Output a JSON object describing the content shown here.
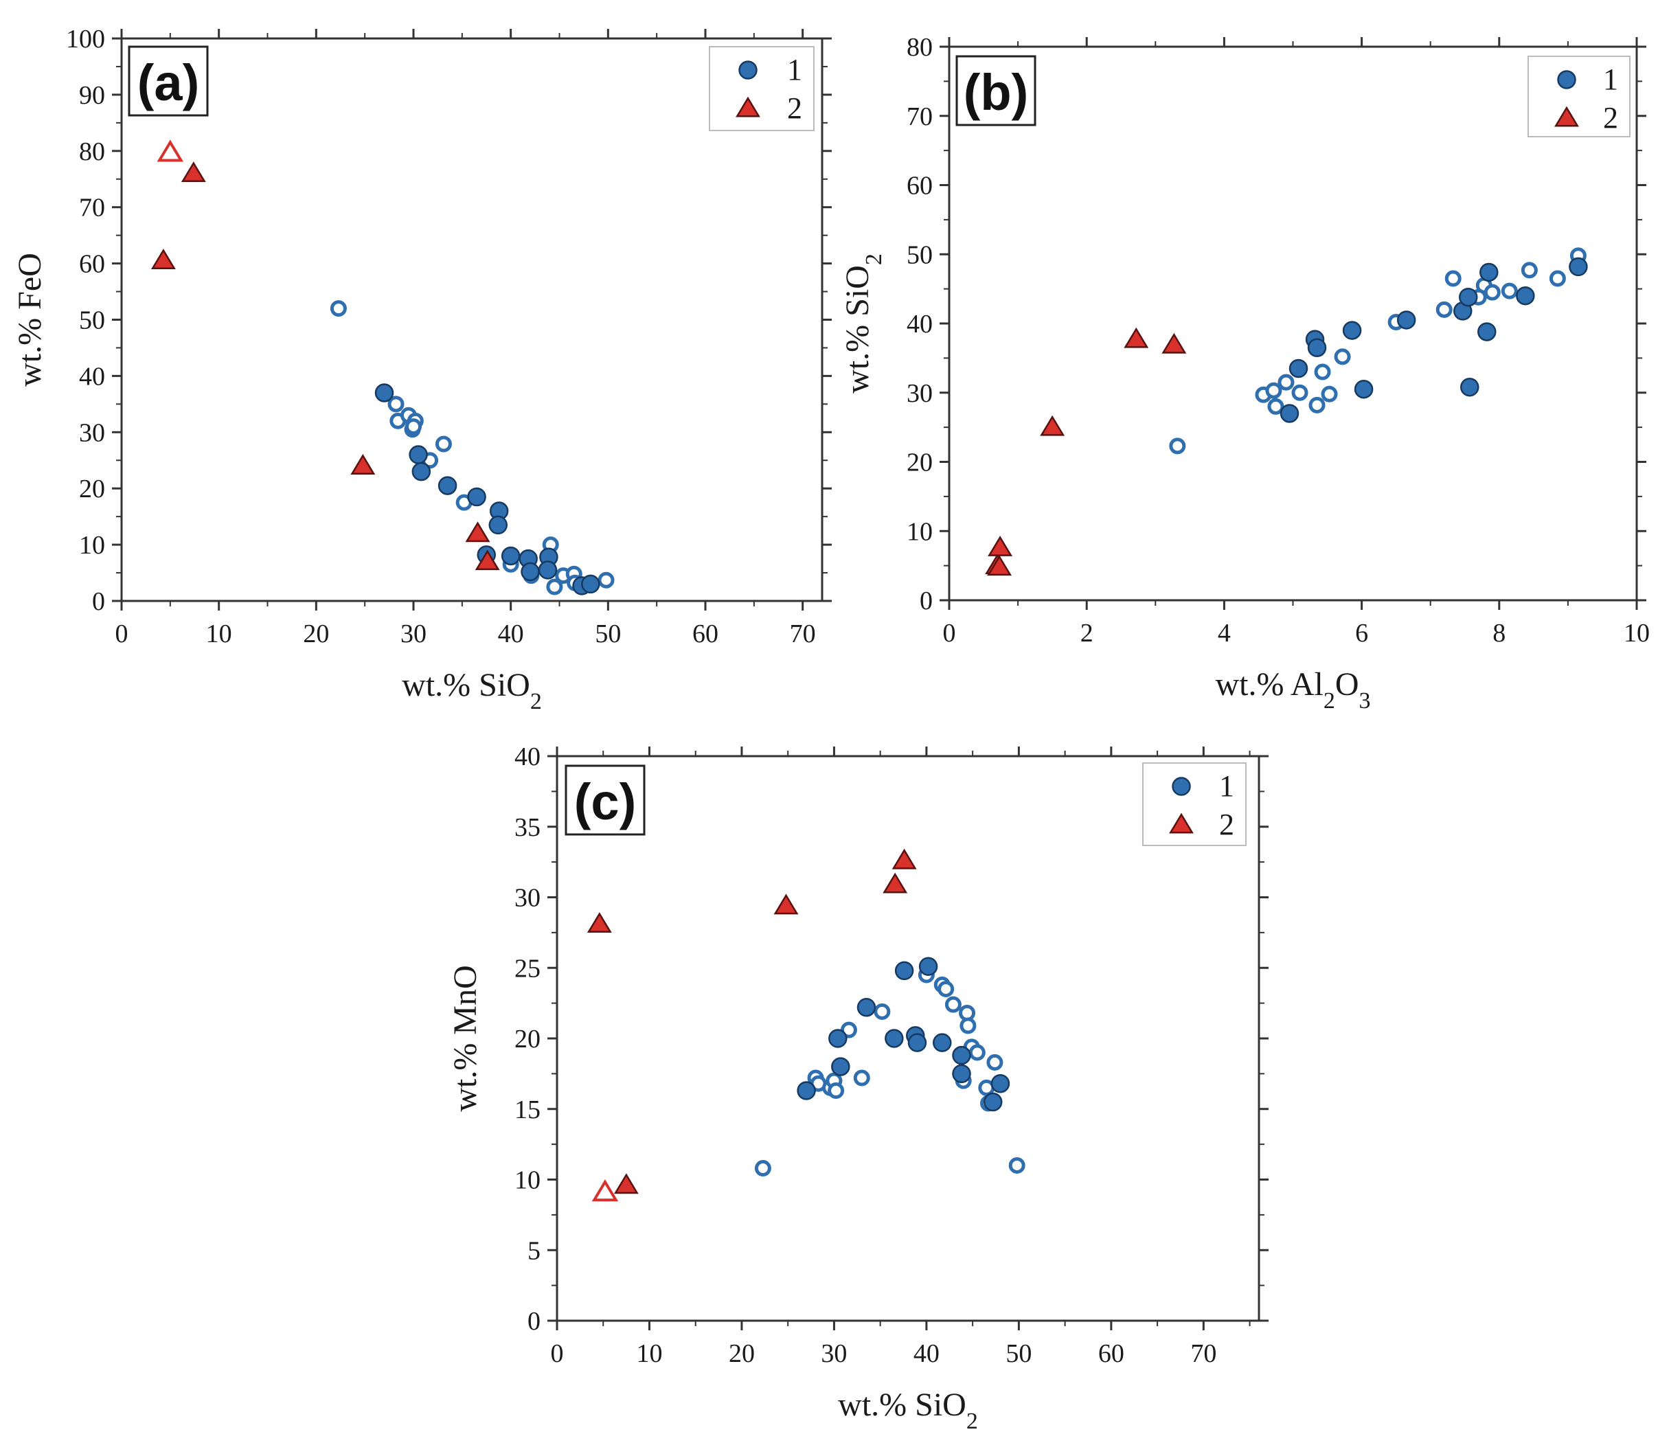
{
  "colors": {
    "series1": "#2f6faf",
    "series1_edge": "#163a62",
    "series2": "#d8312b",
    "series2_edge": "#5a1210"
  },
  "legend": [
    "1",
    "2"
  ],
  "chart_data": [
    {
      "type": "scatter",
      "panel": "(a)",
      "xlabel": "wt.% SiO2",
      "ylabel": "wt.% FeO",
      "xlim": [
        0,
        72
      ],
      "ylim": [
        0,
        100
      ],
      "xticks": [
        0,
        10,
        20,
        30,
        40,
        50,
        60,
        70
      ],
      "yticks": [
        0,
        10,
        20,
        30,
        40,
        50,
        60,
        70,
        80,
        90,
        100
      ],
      "legend_position": "top-right",
      "series": [
        {
          "name": "1",
          "marker": "circle",
          "filled_points": [
            [
              27,
              37
            ],
            [
              30.5,
              26
            ],
            [
              30.8,
              23
            ],
            [
              33.5,
              20.5
            ],
            [
              36.5,
              18.5
            ],
            [
              38.8,
              16
            ],
            [
              38.7,
              13.5
            ],
            [
              37.5,
              8.2
            ],
            [
              40,
              8
            ],
            [
              41.8,
              7.5
            ],
            [
              43.9,
              7.8
            ],
            [
              43.8,
              5.5
            ],
            [
              42,
              5.2
            ],
            [
              47.3,
              2.7
            ],
            [
              48.2,
              3
            ]
          ],
          "hollow_points": [
            [
              22.3,
              52
            ],
            [
              28.2,
              35
            ],
            [
              28.4,
              32
            ],
            [
              29.5,
              33
            ],
            [
              29.9,
              30.5
            ],
            [
              30.2,
              32
            ],
            [
              30,
              31
            ],
            [
              31.7,
              25
            ],
            [
              33.1,
              27.9
            ],
            [
              35.2,
              17.5
            ],
            [
              40,
              6.5
            ],
            [
              42.1,
              4.5
            ],
            [
              44.1,
              10
            ],
            [
              44.5,
              2.5
            ],
            [
              45.4,
              4.5
            ],
            [
              46.5,
              4.8
            ],
            [
              46.6,
              3.2
            ],
            [
              49.8,
              3.7
            ]
          ]
        },
        {
          "name": "2",
          "marker": "triangle",
          "filled_points": [
            [
              4.3,
              60.5
            ],
            [
              7.4,
              76
            ],
            [
              24.8,
              24
            ],
            [
              36.6,
              12
            ],
            [
              37.6,
              7
            ]
          ],
          "hollow_points": [
            [
              5,
              79.7
            ]
          ]
        }
      ]
    },
    {
      "type": "scatter",
      "panel": "(b)",
      "xlabel": "wt.% Al2O3",
      "ylabel": "wt.% SiO2",
      "xlim": [
        0,
        10
      ],
      "ylim": [
        0,
        80
      ],
      "xticks": [
        0,
        2,
        4,
        6,
        8,
        10
      ],
      "yticks": [
        0,
        10,
        20,
        30,
        40,
        50,
        60,
        70,
        80
      ],
      "legend_position": "top-right",
      "series": [
        {
          "name": "1",
          "marker": "circle",
          "filled_points": [
            [
              4.95,
              27
            ],
            [
              5.08,
              33.5
            ],
            [
              5.32,
              37.7
            ],
            [
              5.35,
              36.5
            ],
            [
              5.86,
              39
            ],
            [
              6.03,
              30.5
            ],
            [
              6.65,
              40.5
            ],
            [
              7.47,
              41.8
            ],
            [
              7.55,
              43.8
            ],
            [
              7.57,
              30.8
            ],
            [
              7.82,
              38.8
            ],
            [
              7.85,
              47.4
            ],
            [
              8.38,
              44
            ],
            [
              9.15,
              48.2
            ]
          ],
          "hollow_points": [
            [
              3.32,
              22.3
            ],
            [
              4.57,
              29.7
            ],
            [
              4.72,
              30.3
            ],
            [
              4.75,
              28
            ],
            [
              4.9,
              31.5
            ],
            [
              5.1,
              30
            ],
            [
              5.35,
              28.2
            ],
            [
              5.43,
              33
            ],
            [
              5.53,
              29.8
            ],
            [
              5.72,
              35.2
            ],
            [
              6.5,
              40.2
            ],
            [
              7.2,
              42
            ],
            [
              7.33,
              46.5
            ],
            [
              7.7,
              43.8
            ],
            [
              7.78,
              45.5
            ],
            [
              7.9,
              44.5
            ],
            [
              8.15,
              44.7
            ],
            [
              8.44,
              47.7
            ],
            [
              8.85,
              46.5
            ],
            [
              9.15,
              49.8
            ]
          ]
        },
        {
          "name": "2",
          "marker": "triangle",
          "filled_points": [
            [
              0.7,
              5
            ],
            [
              0.73,
              4.8
            ],
            [
              0.74,
              7.6
            ],
            [
              1.5,
              25
            ],
            [
              2.72,
              37.7
            ],
            [
              3.27,
              36.9
            ]
          ],
          "hollow_points": []
        }
      ]
    },
    {
      "type": "scatter",
      "panel": "(c)",
      "xlabel": "wt.% SiO2",
      "ylabel": "wt.% MnO",
      "xlim": [
        0,
        76
      ],
      "ylim": [
        0,
        40
      ],
      "xticks": [
        0,
        10,
        20,
        30,
        40,
        50,
        60,
        70
      ],
      "yticks": [
        0,
        5,
        10,
        15,
        20,
        25,
        30,
        35,
        40
      ],
      "legend_position": "top-right",
      "series": [
        {
          "name": "1",
          "marker": "circle",
          "filled_points": [
            [
              27,
              16.3
            ],
            [
              30.4,
              20
            ],
            [
              30.7,
              18
            ],
            [
              33.5,
              22.2
            ],
            [
              36.5,
              20
            ],
            [
              37.6,
              24.8
            ],
            [
              38.8,
              20.2
            ],
            [
              39,
              19.7
            ],
            [
              40.2,
              25.1
            ],
            [
              41.7,
              19.7
            ],
            [
              43.8,
              18.8
            ],
            [
              43.8,
              17.5
            ],
            [
              47.2,
              15.5
            ],
            [
              48,
              16.8
            ]
          ],
          "hollow_points": [
            [
              22.3,
              10.8
            ],
            [
              28,
              17.2
            ],
            [
              28.3,
              16.8
            ],
            [
              29.6,
              16.5
            ],
            [
              30,
              17
            ],
            [
              30.2,
              16.3
            ],
            [
              31.6,
              20.6
            ],
            [
              33,
              17.2
            ],
            [
              35.2,
              21.9
            ],
            [
              40,
              24.5
            ],
            [
              41.7,
              23.8
            ],
            [
              42.1,
              23.5
            ],
            [
              42.9,
              22.4
            ],
            [
              44,
              17
            ],
            [
              44.4,
              21.8
            ],
            [
              44.5,
              20.9
            ],
            [
              44.9,
              19.4
            ],
            [
              45.5,
              19
            ],
            [
              46.5,
              16.5
            ],
            [
              46.7,
              15.4
            ],
            [
              47.4,
              18.3
            ],
            [
              49.8,
              11
            ]
          ]
        },
        {
          "name": "2",
          "marker": "triangle",
          "filled_points": [
            [
              4.6,
              28.1
            ],
            [
              7.5,
              9.6
            ],
            [
              24.8,
              29.4
            ],
            [
              36.6,
              30.9
            ],
            [
              37.6,
              32.6
            ]
          ],
          "hollow_points": [
            [
              5.2,
              9.1
            ]
          ]
        }
      ]
    }
  ]
}
